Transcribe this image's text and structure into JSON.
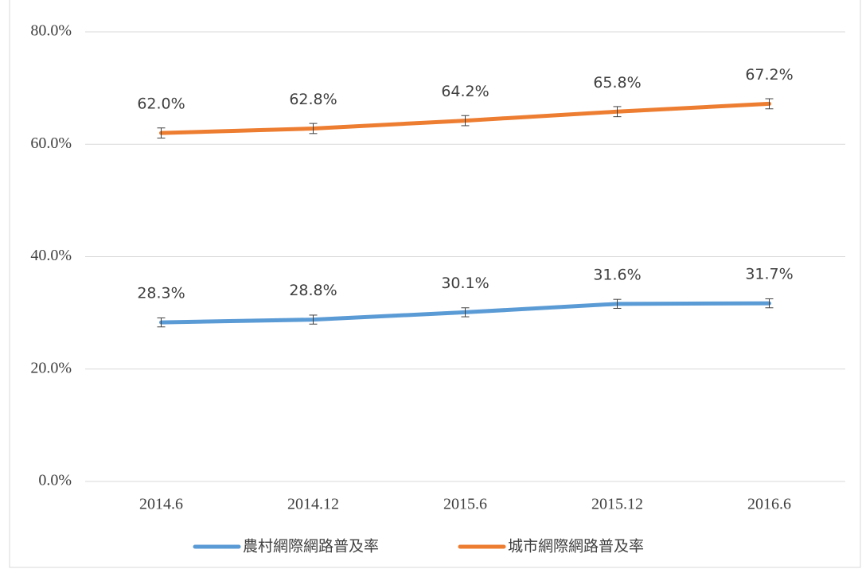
{
  "chart_data": {
    "type": "line",
    "categories": [
      "2014.6",
      "2014.12",
      "2015.6",
      "2015.12",
      "2016.6"
    ],
    "series": [
      {
        "name": "農村網際網路普及率",
        "color": "#5b9bd5",
        "values": [
          28.3,
          28.8,
          30.1,
          31.6,
          31.7
        ],
        "value_labels": [
          "28.3%",
          "28.8%",
          "30.1%",
          "31.6%",
          "31.7%"
        ],
        "errors": [
          0.8,
          0.8,
          0.8,
          0.8,
          0.8
        ]
      },
      {
        "name": "城市網際網路普及率",
        "color": "#ed7d31",
        "values": [
          62.0,
          62.8,
          64.2,
          65.8,
          67.2
        ],
        "value_labels": [
          "62.0%",
          "62.8%",
          "64.2%",
          "65.8%",
          "67.2%"
        ],
        "errors": [
          0.9,
          0.9,
          0.9,
          0.9,
          0.9
        ]
      }
    ],
    "ylim": [
      0,
      80
    ],
    "yticks": [
      {
        "value": 0,
        "label": "0.0%"
      },
      {
        "value": 20,
        "label": "20.0%"
      },
      {
        "value": 40,
        "label": "40.0%"
      },
      {
        "value": 60,
        "label": "60.0%"
      },
      {
        "value": 80,
        "label": "80.0%"
      }
    ],
    "grid": true,
    "legend": "bottom"
  }
}
